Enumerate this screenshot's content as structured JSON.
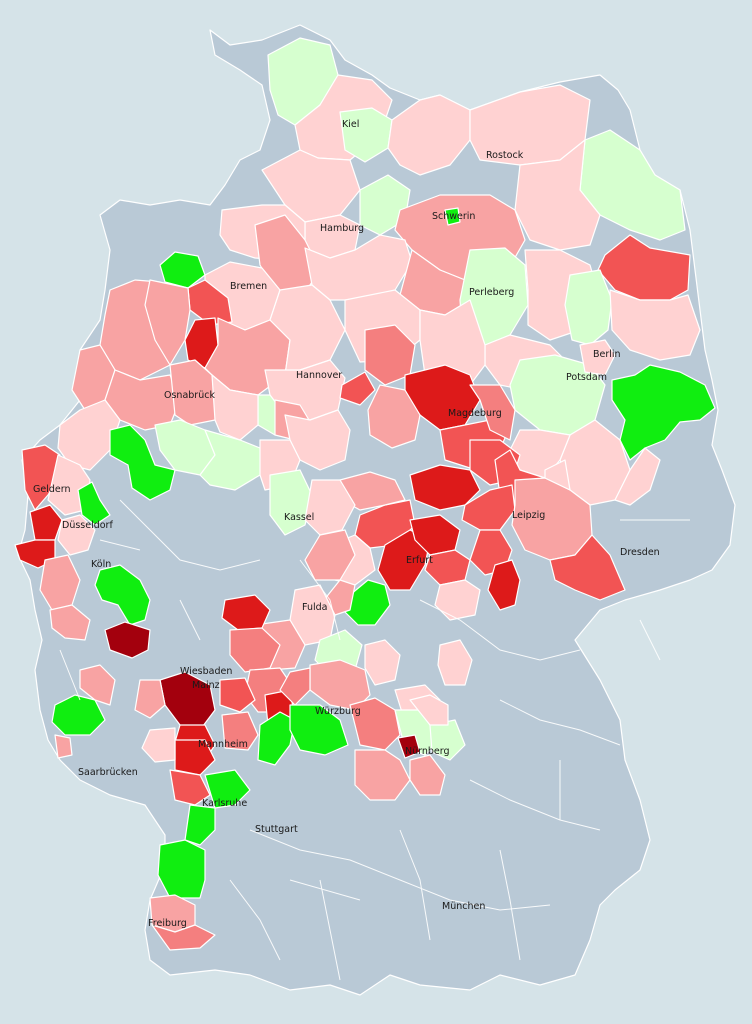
{
  "map": {
    "background": "#d5e3e8",
    "colors": {
      "gray": "#b9c9d6",
      "palegreen": "#d6ffcf",
      "green": "#10ee10",
      "lightpink": "#ffd2d2",
      "pink": "#f8a3a3",
      "salmon": "#f47f7f",
      "red": "#f25454",
      "crimson": "#dd1a1a",
      "darkred": "#a3000d"
    },
    "cities": [
      {
        "id": "kiel",
        "name": "Kiel"
      },
      {
        "id": "rostock",
        "name": "Rostock"
      },
      {
        "id": "hamburg",
        "name": "Hamburg"
      },
      {
        "id": "schwerin",
        "name": "Schwerin"
      },
      {
        "id": "bremen",
        "name": "Bremen"
      },
      {
        "id": "perleberg",
        "name": "Perleberg"
      },
      {
        "id": "berlin",
        "name": "Berlin"
      },
      {
        "id": "hannover",
        "name": "Hannover"
      },
      {
        "id": "potsdam",
        "name": "Potsdam"
      },
      {
        "id": "osnabrueck",
        "name": "Osnabrück"
      },
      {
        "id": "magdeburg",
        "name": "Magdeburg"
      },
      {
        "id": "geldern",
        "name": "Geldern"
      },
      {
        "id": "leipzig",
        "name": "Leipzig"
      },
      {
        "id": "duesseldorf",
        "name": "Düsseldorf"
      },
      {
        "id": "kassel",
        "name": "Kassel"
      },
      {
        "id": "erfurt",
        "name": "Erfurt"
      },
      {
        "id": "dresden",
        "name": "Dresden"
      },
      {
        "id": "koeln",
        "name": "Köln"
      },
      {
        "id": "fulda",
        "name": "Fulda"
      },
      {
        "id": "wiesbaden",
        "name": "Wiesbaden"
      },
      {
        "id": "mainz",
        "name": "Mainz"
      },
      {
        "id": "wuerzburg",
        "name": "Würzburg"
      },
      {
        "id": "mannheim",
        "name": "Mannheim"
      },
      {
        "id": "nuernberg",
        "name": "Nürnberg"
      },
      {
        "id": "saarbruecken",
        "name": "Saarbrücken"
      },
      {
        "id": "karlsruhe",
        "name": "Karlsruhe"
      },
      {
        "id": "stuttgart",
        "name": "Stuttgart"
      },
      {
        "id": "muenchen",
        "name": "München"
      },
      {
        "id": "freiburg",
        "name": "Freiburg"
      }
    ]
  }
}
